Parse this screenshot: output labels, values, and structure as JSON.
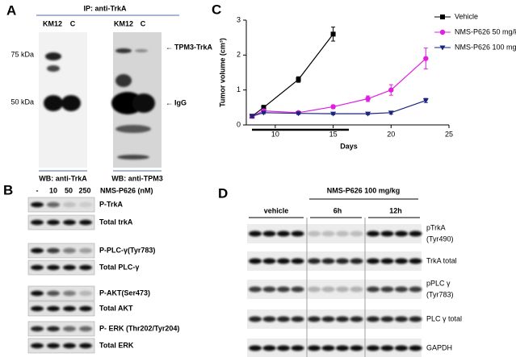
{
  "panel_a": {
    "label": "A",
    "ip": "IP: anti-TrkA",
    "lanes_left": [
      "KM12",
      "C"
    ],
    "lanes_right": [
      "KM12",
      "C"
    ],
    "markers": [
      "75 kDa",
      "50 kDa"
    ],
    "arrows": [
      "TPM3-TrkA",
      "IgG"
    ],
    "wb_left": "WB: anti-TrkA",
    "wb_right": "WB: anti-TPM3"
  },
  "panel_b": {
    "label": "B",
    "lanes": [
      "-",
      "10",
      "50",
      "250"
    ],
    "treatment": "NMS-P626 (nM)",
    "rows": [
      "P-TrkA",
      "Total trkA",
      "P-PLC-γ(Tyr783)",
      "Total PLC-γ",
      "P-AKT(Ser473)",
      "Total AKT",
      "P- ERK (Thr202/Tyr204)",
      "Total ERK"
    ]
  },
  "panel_d": {
    "label": "D",
    "treatment": "NMS-P626  100 mg/kg",
    "groups": [
      "vehicle",
      "6h",
      "12h"
    ],
    "rows": [
      [
        "pTrkA",
        "(Tyr490)"
      ],
      [
        "TrkA total"
      ],
      [
        "pPLC γ",
        "(Tyr783)"
      ],
      [
        "PLC γ total"
      ],
      [
        "GAPDH"
      ]
    ]
  },
  "chart_data": {
    "type": "line",
    "panel_label": "C",
    "x_label": "Days",
    "y_label": "Tumor volume (cm³)",
    "xlim": [
      7.5,
      25
    ],
    "xticks": [
      10,
      15,
      20,
      25
    ],
    "ylim": [
      0,
      3
    ],
    "yticks": [
      0,
      1,
      2,
      3
    ],
    "legend": "upper right",
    "series": [
      {
        "name": "Vehicle",
        "color": "#000000",
        "marker": "square",
        "x": [
          8,
          9,
          12,
          15
        ],
        "values": [
          0.25,
          0.5,
          1.3,
          2.6
        ],
        "errors": [
          0.05,
          0.06,
          0.08,
          0.2
        ]
      },
      {
        "name": "NMS-P626 50 mg/kg",
        "color": "#e020e0",
        "marker": "circle",
        "x": [
          8,
          9,
          12,
          15,
          18,
          20,
          23
        ],
        "values": [
          0.25,
          0.4,
          0.35,
          0.52,
          0.75,
          1.0,
          1.9
        ],
        "errors": [
          0.04,
          0.05,
          0.03,
          0.05,
          0.08,
          0.15,
          0.3
        ]
      },
      {
        "name": "NMS-P626 100 mg/kg",
        "color": "#1a237e",
        "marker": "triangle-down",
        "x": [
          8,
          9,
          12,
          15,
          18,
          20,
          23
        ],
        "values": [
          0.25,
          0.35,
          0.33,
          0.32,
          0.32,
          0.35,
          0.7
        ],
        "errors": [
          0.03,
          0.03,
          0.03,
          0.03,
          0.03,
          0.04,
          0.06
        ]
      }
    ]
  }
}
